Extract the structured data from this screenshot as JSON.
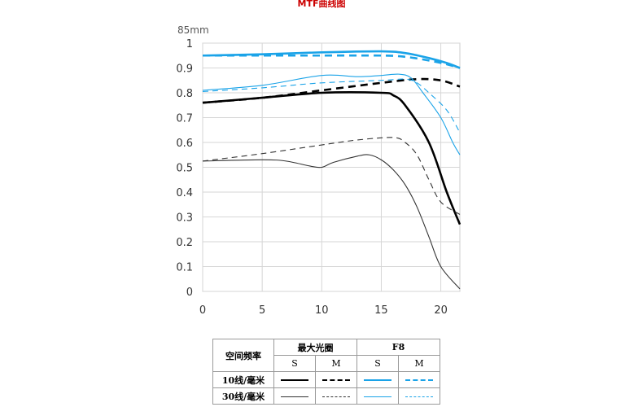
{
  "title": "MTF曲线图",
  "chart_data": {
    "type": "line",
    "ylabel": "85mm",
    "xlabel": "",
    "xlim": [
      0,
      21.6
    ],
    "ylim": [
      0,
      1
    ],
    "xticks": [
      "0",
      "5",
      "10",
      "15",
      "20"
    ],
    "yticks": [
      "0",
      "0.1",
      "0.2",
      "0.3",
      "0.4",
      "0.5",
      "0.6",
      "0.7",
      "0.8",
      "0.9",
      "1"
    ],
    "grid": true,
    "series": [
      {
        "name": "最大光圈 S 10线/毫米",
        "color": "#000000",
        "dash": false,
        "width": "thick",
        "x": [
          0,
          5,
          10,
          15,
          16,
          17,
          19,
          20.5,
          21.6
        ],
        "y": [
          0.76,
          0.78,
          0.8,
          0.8,
          0.79,
          0.75,
          0.6,
          0.4,
          0.27
        ]
      },
      {
        "name": "最大光圈 M 10线/毫米",
        "color": "#000000",
        "dash": true,
        "width": "thick",
        "x": [
          0,
          5,
          10,
          15,
          18,
          20,
          21.6
        ],
        "y": [
          0.76,
          0.78,
          0.81,
          0.84,
          0.855,
          0.85,
          0.825
        ]
      },
      {
        "name": "最大光圈 S 30线/毫米",
        "color": "#333333",
        "dash": false,
        "width": "thin",
        "x": [
          0,
          5,
          7,
          9,
          10,
          11,
          13,
          14,
          15,
          16,
          17,
          18,
          19,
          20,
          21.6
        ],
        "y": [
          0.525,
          0.53,
          0.525,
          0.505,
          0.5,
          0.52,
          0.545,
          0.55,
          0.53,
          0.49,
          0.43,
          0.34,
          0.22,
          0.1,
          0.01
        ]
      },
      {
        "name": "最大光圈 M 30线/毫米",
        "color": "#333333",
        "dash": true,
        "width": "thin",
        "x": [
          0,
          5,
          10,
          13,
          16,
          17,
          18,
          19,
          20,
          21.6
        ],
        "y": [
          0.525,
          0.555,
          0.59,
          0.61,
          0.62,
          0.6,
          0.55,
          0.45,
          0.36,
          0.31
        ]
      },
      {
        "name": "F8 S 10线/毫米",
        "color": "#1aa3e8",
        "dash": false,
        "width": "thick",
        "x": [
          0,
          5,
          10,
          15,
          17,
          19,
          20.5,
          21.6
        ],
        "y": [
          0.95,
          0.955,
          0.963,
          0.967,
          0.96,
          0.94,
          0.92,
          0.9
        ]
      },
      {
        "name": "F8 M 10线/毫米",
        "color": "#1aa3e8",
        "dash": true,
        "width": "thick",
        "x": [
          0,
          5,
          10,
          15,
          17,
          19,
          20.5,
          21.6
        ],
        "y": [
          0.95,
          0.95,
          0.95,
          0.95,
          0.945,
          0.93,
          0.915,
          0.9
        ]
      },
      {
        "name": "F8 S 30线/毫米",
        "color": "#1aa3e8",
        "dash": false,
        "width": "thin",
        "x": [
          0,
          5,
          10,
          13,
          15,
          16.5,
          17.5,
          18.5,
          20,
          21,
          21.6
        ],
        "y": [
          0.81,
          0.83,
          0.87,
          0.865,
          0.87,
          0.875,
          0.86,
          0.8,
          0.7,
          0.6,
          0.55
        ]
      },
      {
        "name": "F8 M 30线/毫米",
        "color": "#1aa3e8",
        "dash": true,
        "width": "thin",
        "x": [
          0,
          5,
          10,
          15,
          17,
          18,
          19,
          20.5,
          21.6
        ],
        "y": [
          0.805,
          0.82,
          0.84,
          0.85,
          0.855,
          0.84,
          0.8,
          0.73,
          0.64
        ]
      }
    ]
  },
  "legend": {
    "freq_header": "空间频率",
    "max_aperture": "最大光圈",
    "f8": "F8",
    "s": "S",
    "m": "M",
    "row10": "10线/毫米",
    "row30": "30线/毫米"
  }
}
